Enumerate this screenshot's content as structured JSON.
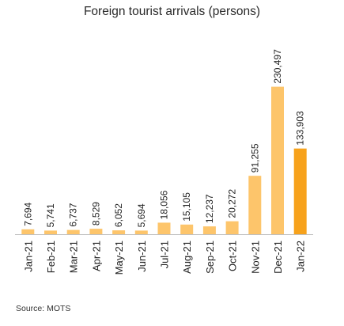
{
  "chart_data": {
    "type": "bar",
    "title": "Foreign tourist arrivals (persons)",
    "categories": [
      "Jan-21",
      "Feb-21",
      "Mar-21",
      "Apr-21",
      "May-21",
      "Jun-21",
      "Jul-21",
      "Aug-21",
      "Sep-21",
      "Oct-21",
      "Nov-21",
      "Dec-21",
      "Jan-22"
    ],
    "values": [
      7694,
      5741,
      6737,
      8529,
      6052,
      5694,
      18056,
      15105,
      12237,
      20272,
      91255,
      230497,
      133903
    ],
    "data_labels": [
      "7,694",
      "5,741",
      "6,737",
      "8,529",
      "6,052",
      "5,694",
      "18,056",
      "15,105",
      "12,237",
      "20,272",
      "91,255",
      "230,497",
      "133,903"
    ],
    "highlight_index": 12,
    "colors": {
      "bar": "#FDC56B",
      "highlight": "#F7A21B",
      "axis": "#BFBFBF",
      "label": "#222222"
    },
    "ylim": [
      0,
      235000
    ],
    "grid": false,
    "legend": "none",
    "source": "Source: MOTS"
  }
}
